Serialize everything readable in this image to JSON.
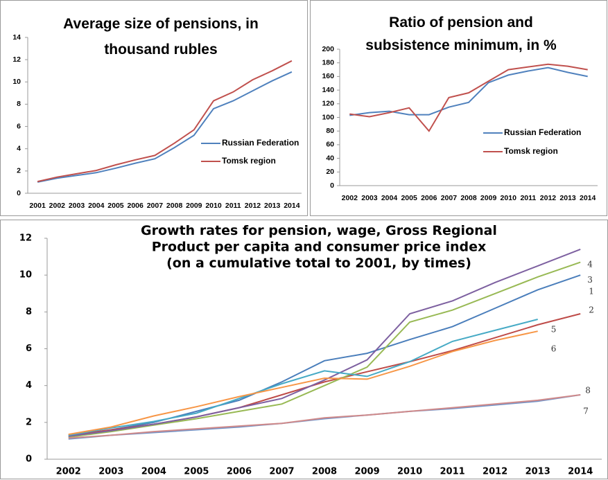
{
  "chart_data": [
    {
      "type": "line",
      "title": "Average size of pensions, in\nthousand rubles",
      "categories": [
        "2001",
        "2002",
        "2003",
        "2004",
        "2005",
        "2006",
        "2007",
        "2008",
        "2009",
        "2010",
        "2011",
        "2012",
        "2013",
        "2014"
      ],
      "series": [
        {
          "name": "Russian Federation",
          "color": "#4f81bd",
          "values": [
            1.0,
            1.35,
            1.6,
            1.85,
            2.25,
            2.7,
            3.1,
            4.1,
            5.2,
            7.6,
            8.3,
            9.2,
            10.1,
            10.9
          ]
        },
        {
          "name": "Tomsk region",
          "color": "#c0504d",
          "values": [
            1.05,
            1.45,
            1.75,
            2.05,
            2.55,
            3.0,
            3.4,
            4.5,
            5.7,
            8.3,
            9.1,
            10.2,
            11.0,
            11.9
          ]
        }
      ],
      "ylim": [
        0,
        14
      ],
      "yticks": [
        0,
        2,
        4,
        6,
        8,
        10,
        12,
        14
      ],
      "grid": false,
      "legend": "right"
    },
    {
      "type": "line",
      "title": "Ratio of pension and\nsubsistence minimum, in %",
      "categories": [
        "2002",
        "2003",
        "2004",
        "2005",
        "2006",
        "2007",
        "2008",
        "2009",
        "2010",
        "2011",
        "2012",
        "2013",
        "2014"
      ],
      "series": [
        {
          "name": "Russian Federation",
          "color": "#4f81bd",
          "values": [
            103,
            107,
            109,
            104,
            104,
            115,
            122,
            151,
            162,
            168,
            173,
            166,
            160
          ]
        },
        {
          "name": "Tomsk region",
          "color": "#c0504d",
          "values": [
            105,
            101,
            107,
            114,
            80,
            129,
            136,
            153,
            170,
            174,
            178,
            175,
            170
          ]
        }
      ],
      "ylim": [
        0,
        200
      ],
      "yticks": [
        0,
        20,
        40,
        60,
        80,
        100,
        120,
        140,
        160,
        180,
        200
      ],
      "grid": false,
      "legend": "right"
    },
    {
      "type": "line",
      "title": "Growth rates for pension, wage, Gross Regional\nProduct per capita and consumer price index\n(on a cumulative total to 2001, by times)",
      "categories": [
        "2002",
        "2003",
        "2004",
        "2005",
        "2006",
        "2007",
        "2008",
        "2009",
        "2010",
        "2011",
        "2012",
        "2013",
        "2014"
      ],
      "series": [
        {
          "name": "1",
          "color": "#4a7ebb",
          "values": [
            1.2,
            1.6,
            2.0,
            2.6,
            3.2,
            4.2,
            5.35,
            5.75,
            6.5,
            7.2,
            8.2,
            9.2,
            10.0
          ]
        },
        {
          "name": "2",
          "color": "#be4b48",
          "values": [
            1.3,
            1.6,
            1.9,
            2.3,
            2.8,
            3.5,
            4.2,
            4.75,
            5.3,
            5.9,
            6.6,
            7.3,
            7.9
          ]
        },
        {
          "name": "3",
          "color": "#98b954",
          "values": [
            1.2,
            1.5,
            1.85,
            2.2,
            2.6,
            3.0,
            4.0,
            5.0,
            7.45,
            8.1,
            9.0,
            9.9,
            10.7
          ]
        },
        {
          "name": "4",
          "color": "#7d60a0",
          "values": [
            1.25,
            1.55,
            1.9,
            2.3,
            2.8,
            3.3,
            4.3,
            5.4,
            7.9,
            8.6,
            9.6,
            10.5,
            11.4
          ]
        },
        {
          "name": "5",
          "color": "#46aac5",
          "values": [
            1.3,
            1.7,
            2.05,
            2.5,
            3.3,
            4.1,
            4.8,
            4.5,
            5.3,
            6.4,
            7.0,
            7.6,
            null
          ]
        },
        {
          "name": "6",
          "color": "#f79646",
          "values": [
            1.35,
            1.75,
            2.35,
            2.85,
            3.4,
            3.9,
            4.4,
            4.35,
            5.05,
            5.85,
            6.45,
            6.95,
            null
          ]
        },
        {
          "name": "7",
          "color": "#6f93c9",
          "values": [
            1.1,
            1.3,
            1.45,
            1.6,
            1.75,
            1.95,
            2.2,
            2.4,
            2.6,
            2.75,
            2.95,
            3.15,
            3.5
          ]
        },
        {
          "name": "8",
          "color": "#d08a8a",
          "values": [
            1.15,
            1.3,
            1.5,
            1.65,
            1.8,
            1.95,
            2.25,
            2.4,
            2.6,
            2.8,
            3.0,
            3.2,
            3.5
          ]
        }
      ],
      "ylim": [
        0,
        12
      ],
      "yticks": [
        0,
        2,
        4,
        6,
        8,
        10,
        12
      ],
      "grid": false,
      "legend": "end-of-line"
    }
  ]
}
